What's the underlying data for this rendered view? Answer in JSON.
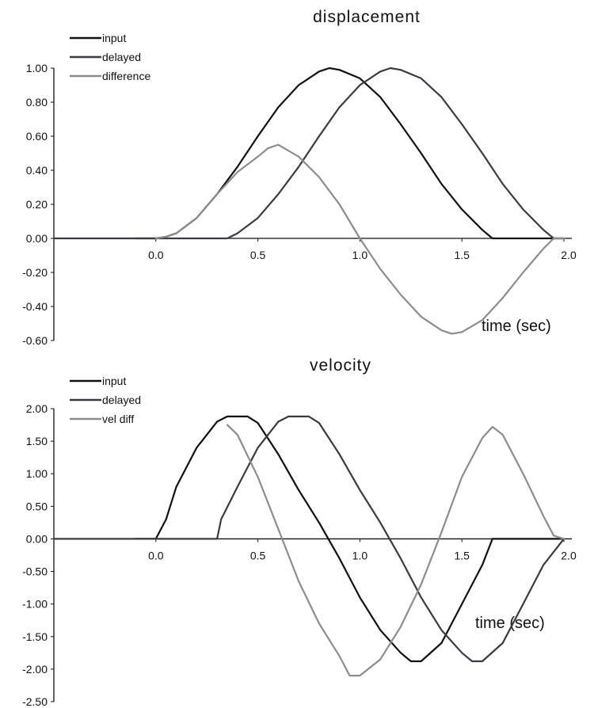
{
  "colors": {
    "input": "#111111",
    "delayed": "#3a3a44",
    "difference": "#8c8c8c"
  },
  "chart_data": [
    {
      "type": "line",
      "title": "displacement",
      "xlabel": "time  (sec)",
      "ylabel": "",
      "xlim": [
        -0.5,
        2.0
      ],
      "ylim": [
        -0.6,
        1.0
      ],
      "xticks": [
        "0.0",
        "0.5",
        "1.0",
        "1.5",
        "2.0"
      ],
      "yticks": [
        "1.00",
        "0.80",
        "0.60",
        "0.40",
        "0.20",
        "0.00",
        "-0.20",
        "-0.40",
        "-0.60"
      ],
      "legend_position": "top-left",
      "grid": false,
      "series": [
        {
          "name": "input",
          "x": [
            -0.1,
            0.0,
            0.05,
            0.1,
            0.2,
            0.3,
            0.4,
            0.5,
            0.6,
            0.7,
            0.8,
            0.85,
            0.9,
            1.0,
            1.1,
            1.2,
            1.3,
            1.4,
            1.5,
            1.6,
            1.65,
            1.75,
            2.0
          ],
          "y": [
            0.0,
            0.0,
            0.01,
            0.03,
            0.12,
            0.26,
            0.42,
            0.6,
            0.77,
            0.9,
            0.98,
            1.0,
            0.99,
            0.94,
            0.83,
            0.67,
            0.5,
            0.32,
            0.17,
            0.05,
            0.0,
            0.0,
            0.0
          ]
        },
        {
          "name": "delayed",
          "x": [
            -0.5,
            0.3,
            0.35,
            0.4,
            0.5,
            0.6,
            0.7,
            0.8,
            0.9,
            1.0,
            1.1,
            1.15,
            1.2,
            1.3,
            1.4,
            1.5,
            1.6,
            1.7,
            1.8,
            1.9,
            1.95,
            2.0
          ],
          "y": [
            0.0,
            0.0,
            0.0,
            0.03,
            0.12,
            0.26,
            0.42,
            0.6,
            0.77,
            0.9,
            0.98,
            1.0,
            0.99,
            0.94,
            0.83,
            0.67,
            0.5,
            0.32,
            0.17,
            0.05,
            0.0,
            0.0
          ]
        },
        {
          "name": "difference",
          "x": [
            0.0,
            0.05,
            0.1,
            0.2,
            0.3,
            0.4,
            0.5,
            0.55,
            0.6,
            0.7,
            0.8,
            0.9,
            1.0,
            1.1,
            1.2,
            1.3,
            1.4,
            1.45,
            1.5,
            1.6,
            1.7,
            1.8,
            1.9,
            1.95,
            2.0
          ],
          "y": [
            0.0,
            0.01,
            0.03,
            0.12,
            0.26,
            0.39,
            0.48,
            0.53,
            0.55,
            0.48,
            0.36,
            0.2,
            0.0,
            -0.18,
            -0.33,
            -0.46,
            -0.54,
            -0.56,
            -0.55,
            -0.48,
            -0.35,
            -0.2,
            -0.06,
            0.0,
            0.0
          ]
        }
      ]
    },
    {
      "type": "line",
      "title": "velocity",
      "xlabel": "time  (sec)",
      "ylabel": "",
      "xlim": [
        -0.5,
        2.0
      ],
      "ylim": [
        -2.5,
        2.0
      ],
      "xticks": [
        "0.0",
        "0.5",
        "1.0",
        "1.5",
        "2.0"
      ],
      "yticks": [
        "2.00",
        "1.50",
        "1.00",
        "0.50",
        "0.00",
        "-0.50",
        "-1.00",
        "-1.50",
        "-2.00",
        "-2.50"
      ],
      "legend_position": "top-left",
      "grid": false,
      "series": [
        {
          "name": "input",
          "x": [
            -0.1,
            0.0,
            0.05,
            0.1,
            0.2,
            0.3,
            0.35,
            0.4,
            0.45,
            0.5,
            0.6,
            0.7,
            0.8,
            0.9,
            1.0,
            1.1,
            1.2,
            1.25,
            1.3,
            1.4,
            1.5,
            1.6,
            1.65,
            1.7,
            2.0
          ],
          "y": [
            0.0,
            0.0,
            0.3,
            0.8,
            1.4,
            1.8,
            1.88,
            1.88,
            1.88,
            1.78,
            1.3,
            0.75,
            0.25,
            -0.3,
            -0.9,
            -1.4,
            -1.75,
            -1.88,
            -1.88,
            -1.6,
            -1.0,
            -0.4,
            0.0,
            0.0,
            0.0
          ]
        },
        {
          "name": "delayed",
          "x": [
            -0.5,
            0.3,
            0.32,
            0.4,
            0.5,
            0.6,
            0.65,
            0.7,
            0.75,
            0.8,
            0.9,
            1.0,
            1.1,
            1.2,
            1.3,
            1.4,
            1.5,
            1.55,
            1.6,
            1.7,
            1.8,
            1.9,
            2.0
          ],
          "y": [
            0.0,
            0.0,
            0.3,
            0.8,
            1.4,
            1.8,
            1.88,
            1.88,
            1.88,
            1.78,
            1.3,
            0.75,
            0.25,
            -0.3,
            -0.9,
            -1.4,
            -1.75,
            -1.88,
            -1.88,
            -1.6,
            -1.0,
            -0.4,
            0.0
          ]
        },
        {
          "name": "vel diff",
          "x": [
            0.35,
            0.4,
            0.5,
            0.6,
            0.7,
            0.8,
            0.9,
            0.95,
            1.0,
            1.1,
            1.2,
            1.3,
            1.4,
            1.5,
            1.6,
            1.65,
            1.7,
            1.8,
            1.9,
            1.95,
            2.0
          ],
          "y": [
            1.75,
            1.6,
            0.95,
            0.15,
            -0.65,
            -1.3,
            -1.8,
            -2.1,
            -2.1,
            -1.85,
            -1.35,
            -0.7,
            0.1,
            0.95,
            1.55,
            1.72,
            1.6,
            1.0,
            0.35,
            0.05,
            0.0
          ]
        }
      ]
    }
  ]
}
